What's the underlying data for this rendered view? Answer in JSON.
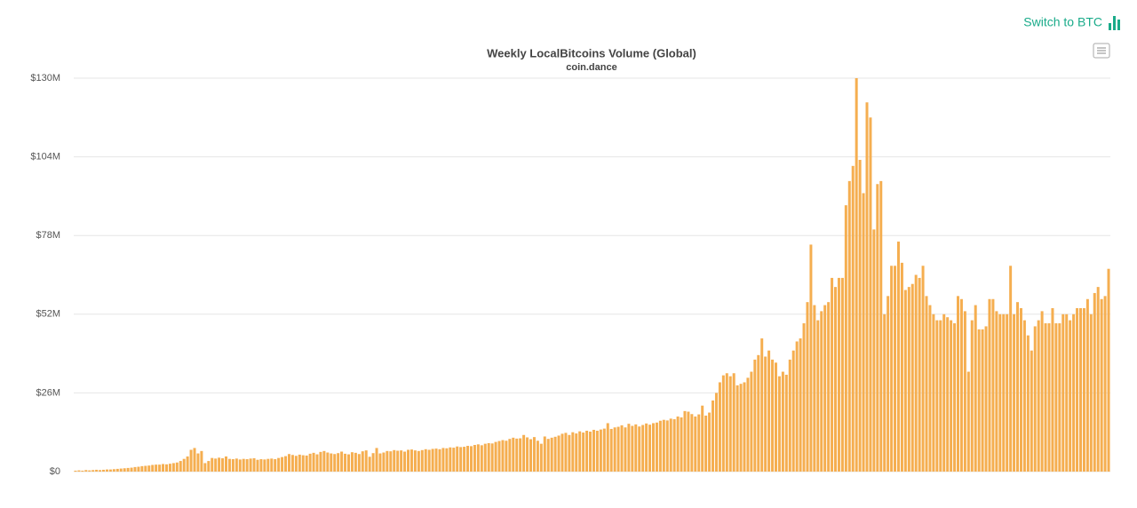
{
  "chart_data": {
    "type": "bar",
    "title": "Weekly LocalBitcoins Volume (Global)",
    "subtitle": "coin.dance",
    "switch_label": "Switch to BTC",
    "color": "#f5ae50",
    "grid": true,
    "ylim": [
      0,
      130
    ],
    "yticks": [
      {
        "value": 0,
        "label": "$0"
      },
      {
        "value": 26,
        "label": "$26M"
      },
      {
        "value": 52,
        "label": "$52M"
      },
      {
        "value": 78,
        "label": "$78M"
      },
      {
        "value": 104,
        "label": "$104M"
      },
      {
        "value": 130,
        "label": "$130M"
      }
    ],
    "values": [
      0.3,
      0.4,
      0.3,
      0.5,
      0.4,
      0.5,
      0.6,
      0.5,
      0.6,
      0.7,
      0.7,
      0.8,
      0.9,
      1,
      1.1,
      1.2,
      1.3,
      1.5,
      1.6,
      1.8,
      1.9,
      2,
      2.2,
      2.3,
      2.3,
      2.5,
      2.4,
      2.6,
      2.8,
      3,
      3.5,
      4.2,
      5,
      7.2,
      7.8,
      6,
      6.8,
      2.8,
      3.5,
      4.5,
      4.3,
      4.6,
      4.4,
      5,
      4.2,
      4.1,
      4.3,
      4.0,
      4.2,
      4.1,
      4.3,
      4.4,
      3.9,
      4.1,
      4.0,
      4.2,
      4.3,
      4.1,
      4.5,
      4.8,
      5.1,
      5.8,
      5.5,
      5.2,
      5.6,
      5.4,
      5.3,
      5.9,
      6.2,
      5.7,
      6.5,
      6.8,
      6.3,
      6,
      5.8,
      6.1,
      6.6,
      5.9,
      5.7,
      6.4,
      6.2,
      5.8,
      6.7,
      7,
      4.9,
      6.1,
      7.8,
      6,
      6.3,
      6.8,
      6.7,
      7.1,
      6.9,
      7,
      6.6,
      7.2,
      7.3,
      7,
      6.8,
      7.1,
      7.4,
      7.2,
      7.5,
      7.6,
      7.4,
      7.8,
      7.7,
      8,
      7.9,
      8.3,
      8.1,
      8.2,
      8.5,
      8.4,
      8.8,
      9,
      8.7,
      9.2,
      9.4,
      9.3,
      9.8,
      10.1,
      10.4,
      10.2,
      10.8,
      11.2,
      10.9,
      11,
      12.1,
      11.3,
      10.7,
      11.4,
      10.2,
      9.2,
      11.6,
      10.8,
      11.2,
      11.5,
      11.9,
      12.5,
      12.8,
      12.1,
      13,
      12.6,
      13.3,
      12.9,
      13.5,
      13.2,
      13.8,
      13.5,
      13.9,
      14.2,
      16,
      14.1,
      14.6,
      14.8,
      15.3,
      14.6,
      15.8,
      15.1,
      15.6,
      14.9,
      15.4,
      15.9,
      15.5,
      16,
      16.2,
      16.8,
      17.1,
      16.9,
      17.5,
      17.3,
      18.2,
      17.9,
      20,
      19.8,
      19,
      18.2,
      18.9,
      21.8,
      18.5,
      19.5,
      23.5,
      26,
      29.5,
      31.8,
      32.5,
      31.5,
      32.5,
      28.5,
      29,
      29.5,
      31,
      33,
      37,
      38.5,
      44,
      38,
      40,
      37,
      36,
      31.5,
      33,
      32,
      37,
      40,
      43,
      44,
      49,
      56,
      75,
      55,
      50,
      53,
      55,
      56,
      64,
      61,
      64,
      64,
      88,
      96,
      101,
      130,
      103,
      92,
      122,
      117,
      80,
      95,
      96,
      52,
      58,
      68,
      68,
      76,
      69,
      60,
      61,
      62,
      65,
      64,
      68,
      58,
      55,
      52,
      50,
      50,
      52,
      51,
      50,
      49,
      58,
      57,
      53,
      33,
      50,
      55,
      47,
      47,
      48,
      57,
      57,
      53,
      52,
      52,
      52,
      68,
      52,
      56,
      54,
      50,
      45,
      40,
      48,
      50,
      53,
      49,
      49,
      54,
      49,
      49,
      52,
      52,
      50,
      52,
      54,
      54,
      54,
      57,
      52,
      59,
      61,
      57,
      58,
      67
    ]
  }
}
